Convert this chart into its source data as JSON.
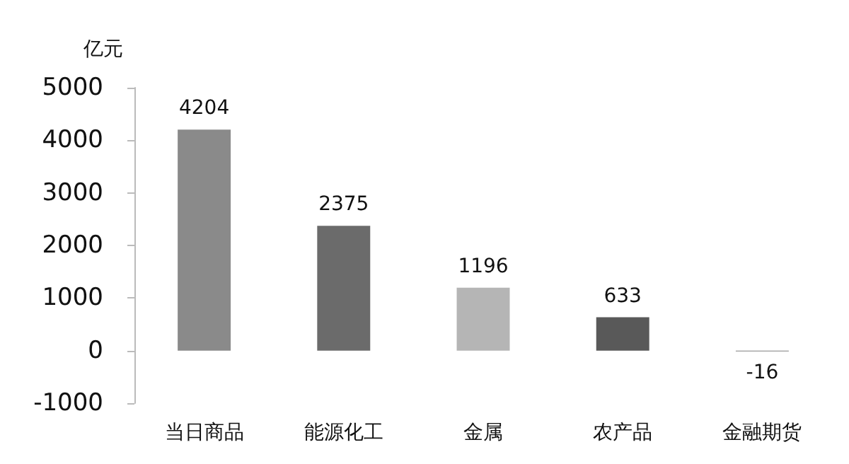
{
  "chart_data": {
    "type": "bar",
    "ylabel": "亿元",
    "categories": [
      "当日商品",
      "能源化工",
      "金属",
      "农产品",
      "金融期货"
    ],
    "values": [
      4204,
      2375,
      1196,
      633,
      -16
    ],
    "colors": [
      "#8a8a8a",
      "#6b6b6b",
      "#b5b5b5",
      "#595959",
      "#7f7f7f"
    ],
    "ylim": [
      -1000,
      5000
    ],
    "yticks": [
      -1000,
      0,
      1000,
      2000,
      3000,
      4000,
      5000
    ],
    "grid": false,
    "data_labels": true
  }
}
